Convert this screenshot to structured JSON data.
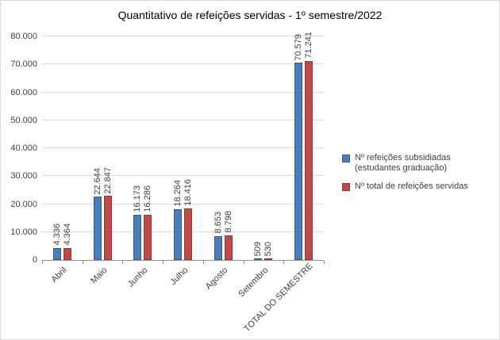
{
  "title": "Quantitativo de refeições servidas - 1º semestre/2022",
  "chart_data": {
    "type": "bar",
    "title": "Quantitativo de refeições servidas - 1º semestre/2022",
    "categories": [
      "Abril",
      "Maio",
      "Junho",
      "Julho",
      "Agosto",
      "Setembro",
      "TOTAL DO SEMESTRE"
    ],
    "series": [
      {
        "name": "Nº refeições subsidiadas (estudantes graduação)",
        "color": "#4a7ebb",
        "border_color": "#385d8a",
        "values": [
          4336,
          22644,
          16173,
          18264,
          8653,
          509,
          70579
        ],
        "labels": [
          "4.336",
          "22.644",
          "16.173",
          "18.264",
          "8.653",
          "509",
          "70.579"
        ]
      },
      {
        "name": "Nº total de refeições servidas",
        "color": "#be4b48",
        "border_color": "#953734",
        "values": [
          4364,
          22847,
          16286,
          18416,
          8798,
          530,
          71241
        ],
        "labels": [
          "4.364",
          "22.847",
          "16.286",
          "18.416",
          "8.798",
          "530",
          "71.241"
        ]
      }
    ],
    "xlabel": "",
    "ylabel": "",
    "ylim": [
      0,
      80000
    ],
    "ytick_step": 10000,
    "ytick_labels": [
      "0",
      "10.000",
      "20.000",
      "30.000",
      "40.000",
      "50.000",
      "60.000",
      "70.000",
      "80.000"
    ],
    "grid": true,
    "legend_position": "right",
    "value_labels_rotation": "vertical",
    "category_labels_rotation": -45
  }
}
